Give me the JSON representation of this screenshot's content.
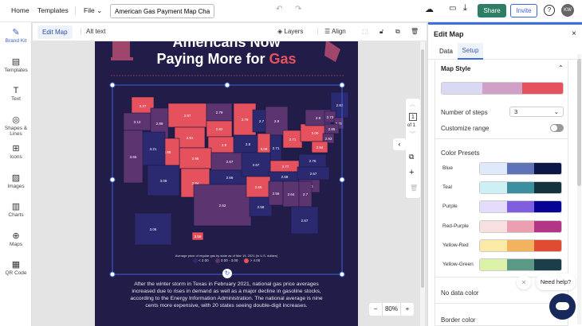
{
  "topbar": {
    "home": "Home",
    "templates": "Templates",
    "file": "File",
    "doc_title": "American Gas Payment Map Chart",
    "share": "Share",
    "invite": "Invite",
    "avatar": "KW"
  },
  "sidebar": {
    "items": [
      {
        "label": "Brand Kit",
        "icon": "magic-wand-icon"
      },
      {
        "label": "Templates",
        "icon": "templates-icon"
      },
      {
        "label": "Text",
        "icon": "text-icon"
      },
      {
        "label": "Shapes & Lines",
        "icon": "shapes-icon"
      },
      {
        "label": "Icons",
        "icon": "briefcase-icon"
      },
      {
        "label": "Images",
        "icon": "image-icon"
      },
      {
        "label": "Charts",
        "icon": "chart-icon"
      },
      {
        "label": "Maps",
        "icon": "globe-icon"
      },
      {
        "label": "QR Code",
        "icon": "qr-icon"
      }
    ]
  },
  "toolbar": {
    "edit_map": "Edit Map",
    "alt_text": "Alt text",
    "layers": "Layers",
    "align": "Align"
  },
  "infographic": {
    "title_line1": "Americans Now",
    "title_line2a": "Paying More for ",
    "title_line2b": "Gas",
    "legend_title": "Average price of regular gas by state as of Mar 15, 2021 (in U.S. dollars)",
    "legend": [
      {
        "label": "< 2.00",
        "color": "#2b2a70"
      },
      {
        "label": "3.00 - 3.00",
        "color": "#5b3470"
      },
      {
        "label": "> 4.00",
        "color": "#e5525e"
      }
    ],
    "body": "After the winter storm in Texas in February 2021, national gas price averages increased due to rises in demand as well as a major decline in gasoline stocks, according to the Energy Information Administration. The national average is nine cents more expensive, with 20 states seeing double-digit increases."
  },
  "map": {
    "colors": {
      "low": "#2b2a70",
      "mid": "#5b3470",
      "high": "#e5525e"
    },
    "states": [
      {
        "value": "3.27",
        "level": "high"
      },
      {
        "value": "3.12",
        "level": "mid"
      },
      {
        "value": "2.89",
        "level": "mid"
      },
      {
        "value": "2.97",
        "level": "high"
      },
      {
        "value": "2.79",
        "level": "mid"
      },
      {
        "value": "2.82",
        "level": "high"
      },
      {
        "value": "2.91",
        "level": "high"
      },
      {
        "value": "2.8",
        "level": "high"
      },
      {
        "value": "2.95",
        "level": "high"
      },
      {
        "value": "2.98",
        "level": "high"
      },
      {
        "value": "3.21",
        "level": "low"
      },
      {
        "value": "3.65",
        "level": "mid"
      },
      {
        "value": "3.09",
        "level": "low"
      },
      {
        "value": "2.84",
        "level": "high"
      },
      {
        "value": "2.67",
        "level": "mid"
      },
      {
        "value": "2.66",
        "level": "low"
      },
      {
        "value": "2.62",
        "level": "mid"
      },
      {
        "value": "2.78",
        "level": "high"
      },
      {
        "value": "2.7",
        "level": "low"
      },
      {
        "value": "2.8",
        "level": "mid"
      },
      {
        "value": "2.8",
        "level": "low"
      },
      {
        "value": "3.09",
        "level": "high"
      },
      {
        "value": "2.71",
        "level": "low"
      },
      {
        "value": "2.71",
        "level": "high"
      },
      {
        "value": "3.00",
        "level": "high"
      },
      {
        "value": "2.9",
        "level": "mid"
      },
      {
        "value": "2.82",
        "level": "low"
      },
      {
        "value": "2.73",
        "level": "mid"
      },
      {
        "value": "2.75",
        "level": "mid"
      },
      {
        "value": "2.85",
        "level": "mid"
      },
      {
        "value": "2.93",
        "level": "mid"
      },
      {
        "value": "2.84",
        "level": "high"
      },
      {
        "value": "2.77",
        "level": "high"
      },
      {
        "value": "2.76",
        "level": "low"
      },
      {
        "value": "2.67",
        "level": "low"
      },
      {
        "value": "2.68",
        "level": "low"
      },
      {
        "value": "2.67",
        "level": "low"
      },
      {
        "value": "2.65",
        "level": "high"
      },
      {
        "value": "2.63",
        "level": "mid"
      },
      {
        "value": "2.58",
        "level": "low"
      },
      {
        "value": "2.56",
        "level": "mid"
      },
      {
        "value": "2.64",
        "level": "mid"
      },
      {
        "value": "2.7",
        "level": "mid"
      },
      {
        "value": "2.67",
        "level": "low"
      },
      {
        "value": "3.06",
        "level": "low"
      },
      {
        "value": "3.55",
        "level": "high"
      }
    ]
  },
  "pager": {
    "page": "1",
    "of": "of 1"
  },
  "zoom": {
    "value": "80%",
    "minus": "−",
    "plus": "+"
  },
  "panel": {
    "title": "Edit Map",
    "tabs": [
      "Data",
      "Setup"
    ],
    "section": "Map Style",
    "style_colors": [
      "#d9d9f3",
      "#d0a0c6",
      "#e5525e"
    ],
    "steps_label": "Number of steps",
    "steps_value": "3",
    "customize_label": "Customize range",
    "customize_on": false,
    "presets_title": "Color Presets",
    "presets": [
      {
        "name": "Blue",
        "colors": [
          "#deeafc",
          "#5f73b8",
          "#0b1646"
        ]
      },
      {
        "name": "Teal",
        "colors": [
          "#cdf0f4",
          "#3b8f9f",
          "#14343d"
        ]
      },
      {
        "name": "Purple",
        "colors": [
          "#e5dcfb",
          "#7f5fe0",
          "#070395"
        ]
      },
      {
        "name": "Red-Purple",
        "colors": [
          "#f8dfe0",
          "#eb9fb0",
          "#b33588"
        ]
      },
      {
        "name": "Yellow-Red",
        "colors": [
          "#fbeaa6",
          "#f2b35f",
          "#df4c31"
        ]
      },
      {
        "name": "Yellow-Green",
        "colors": [
          "#dcf2a9",
          "#5b9886",
          "#1c3e4b"
        ]
      }
    ],
    "no_data": "No data color",
    "border": "Border color"
  },
  "help": {
    "label": "Need help?"
  }
}
